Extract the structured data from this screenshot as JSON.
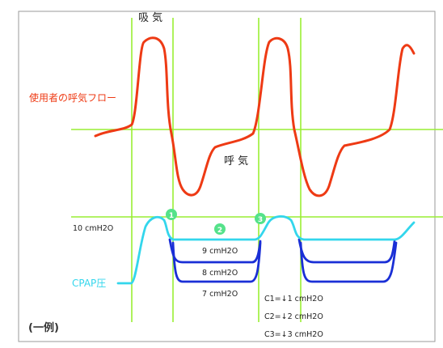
{
  "labels": {
    "inspiration": "吸 気",
    "expiration": "呼 気",
    "user_flow": "使用者の呼気フロー",
    "cpap_pressure": "CPAP圧",
    "example": "(一例)",
    "level_10": "10 cmH2O",
    "level_9": "9 cmH2O",
    "level_8": "8 cmH2O",
    "level_7": "7 cmH2O"
  },
  "markers": [
    "1",
    "2",
    "3"
  ],
  "legend": [
    "C1=↓1 cmH2O",
    "C2=↓2 cmH2O",
    "C3=↓3 cmH2O"
  ],
  "colors": {
    "grid": "#99ee33",
    "flow": "#ee3a14",
    "cpap_base": "#33d6ec",
    "cpap_low": "#1a2fd6",
    "marker": "#55e28a",
    "frame": "#9a9a9a",
    "text": "#222222"
  }
}
